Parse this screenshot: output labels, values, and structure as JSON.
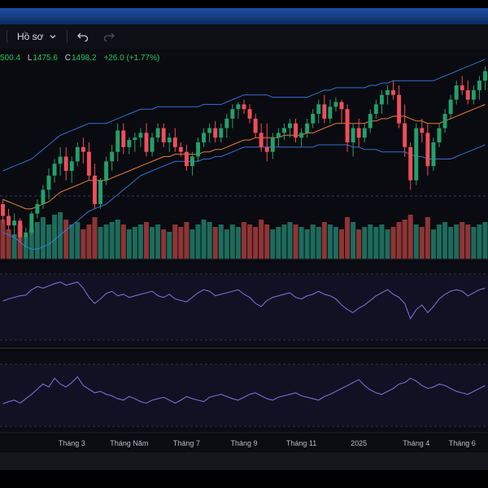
{
  "toolbar": {
    "profile_label": "Hồ sơ",
    "icons": [
      "chevron-down-icon",
      "undo-icon",
      "redo-icon"
    ]
  },
  "ohlc_legend": {
    "o_key": "",
    "o_val": "500.4",
    "l_key": "L",
    "l_val": "1475.6",
    "c_key": "C",
    "c_val": "1498.2",
    "change": "+26.0 (+1.77%)"
  },
  "colors": {
    "background": "#08090c",
    "up": "#22a06b",
    "up_volume": "#1d6b5c",
    "down": "#f04d5b",
    "down_volume": "#8e3535",
    "ma_line": "#ff8a3c",
    "band_line": "#3b82f6",
    "oscillator": "#7a6ccf",
    "oscillator_fill": "#151329",
    "accent": "#1f4fa6"
  },
  "x_axis": {
    "labels": [
      "Tháng 3",
      "Tháng Năm",
      "Tháng 7",
      "Tháng 9",
      "Tháng 11",
      "2025",
      "Tháng 4",
      "Tháng 6"
    ]
  },
  "chart_data": {
    "type": "candlestick",
    "title": "",
    "xlabel": "",
    "ylabel": "",
    "grid": true,
    "candles": [
      [
        38,
        40,
        30,
        33
      ],
      [
        33,
        36,
        27,
        29
      ],
      [
        29,
        34,
        24,
        31
      ],
      [
        31,
        32,
        22,
        24
      ],
      [
        24,
        28,
        20,
        26
      ],
      [
        26,
        35,
        25,
        34
      ],
      [
        34,
        40,
        32,
        38
      ],
      [
        38,
        46,
        36,
        44
      ],
      [
        44,
        53,
        40,
        50
      ],
      [
        50,
        57,
        47,
        55
      ],
      [
        55,
        62,
        50,
        58
      ],
      [
        58,
        62,
        48,
        52
      ],
      [
        52,
        58,
        47,
        56
      ],
      [
        56,
        64,
        54,
        62
      ],
      [
        62,
        66,
        55,
        60
      ],
      [
        60,
        64,
        48,
        50
      ],
      [
        50,
        55,
        36,
        38
      ],
      [
        38,
        49,
        36,
        48
      ],
      [
        48,
        58,
        46,
        56
      ],
      [
        56,
        63,
        52,
        60
      ],
      [
        60,
        72,
        56,
        69
      ],
      [
        69,
        72,
        59,
        62
      ],
      [
        62,
        66,
        59,
        65
      ],
      [
        65,
        68,
        60,
        66
      ],
      [
        66,
        70,
        62,
        68
      ],
      [
        68,
        72,
        58,
        60
      ],
      [
        60,
        68,
        58,
        66
      ],
      [
        66,
        72,
        64,
        70
      ],
      [
        70,
        72,
        62,
        64
      ],
      [
        64,
        68,
        60,
        66
      ],
      [
        66,
        70,
        60,
        62
      ],
      [
        62,
        64,
        58,
        60
      ],
      [
        60,
        63,
        52,
        54
      ],
      [
        54,
        60,
        50,
        58
      ],
      [
        58,
        66,
        56,
        64
      ],
      [
        64,
        70,
        62,
        68
      ],
      [
        68,
        72,
        64,
        70
      ],
      [
        70,
        73,
        64,
        66
      ],
      [
        66,
        72,
        64,
        70
      ],
      [
        70,
        76,
        66,
        74
      ],
      [
        74,
        80,
        70,
        78
      ],
      [
        78,
        81,
        74,
        80
      ],
      [
        80,
        82,
        76,
        78
      ],
      [
        78,
        80,
        72,
        74
      ],
      [
        74,
        76,
        66,
        68
      ],
      [
        68,
        72,
        60,
        62
      ],
      [
        62,
        72,
        56,
        60
      ],
      [
        60,
        68,
        57,
        66
      ],
      [
        66,
        70,
        62,
        68
      ],
      [
        68,
        72,
        65,
        70
      ],
      [
        70,
        74,
        66,
        72
      ],
      [
        72,
        74,
        64,
        66
      ],
      [
        66,
        70,
        62,
        68
      ],
      [
        68,
        74,
        66,
        72
      ],
      [
        72,
        78,
        70,
        76
      ],
      [
        76,
        82,
        72,
        80
      ],
      [
        80,
        84,
        72,
        74
      ],
      [
        74,
        82,
        72,
        79
      ],
      [
        79,
        83,
        77,
        81
      ],
      [
        81,
        82,
        72,
        78
      ],
      [
        78,
        80,
        60,
        64
      ],
      [
        64,
        72,
        58,
        70
      ],
      [
        70,
        74,
        62,
        66
      ],
      [
        66,
        72,
        64,
        70
      ],
      [
        70,
        78,
        68,
        76
      ],
      [
        76,
        82,
        74,
        80
      ],
      [
        80,
        86,
        76,
        84
      ],
      [
        84,
        88,
        80,
        86
      ],
      [
        86,
        90,
        82,
        84
      ],
      [
        84,
        88,
        70,
        72
      ],
      [
        72,
        80,
        58,
        62
      ],
      [
        62,
        64,
        44,
        48
      ],
      [
        48,
        72,
        46,
        70
      ],
      [
        70,
        74,
        64,
        68
      ],
      [
        68,
        72,
        50,
        54
      ],
      [
        54,
        66,
        52,
        64
      ],
      [
        64,
        72,
        62,
        70
      ],
      [
        70,
        78,
        68,
        76
      ],
      [
        76,
        84,
        74,
        82
      ],
      [
        82,
        90,
        80,
        88
      ],
      [
        88,
        92,
        84,
        86
      ],
      [
        86,
        90,
        80,
        82
      ],
      [
        82,
        88,
        80,
        86
      ],
      [
        86,
        92,
        82,
        90
      ],
      [
        90,
        96,
        86,
        94
      ]
    ],
    "volume": [
      80,
      60,
      50,
      70,
      45,
      60,
      75,
      85,
      70,
      90,
      95,
      80,
      70,
      75,
      60,
      70,
      85,
      65,
      70,
      75,
      80,
      70,
      60,
      65,
      70,
      75,
      65,
      70,
      60,
      55,
      70,
      65,
      75,
      60,
      70,
      80,
      75,
      65,
      70,
      60,
      70,
      65,
      75,
      70,
      65,
      80,
      70,
      60,
      65,
      70,
      75,
      70,
      65,
      60,
      70,
      65,
      75,
      70,
      65,
      60,
      85,
      75,
      60,
      65,
      70,
      65,
      70,
      60,
      65,
      75,
      80,
      90,
      70,
      65,
      85,
      60,
      70,
      75,
      65,
      70,
      75,
      70,
      65,
      70,
      75
    ],
    "ma": [
      40,
      39,
      38,
      37,
      36,
      36,
      37,
      38,
      39,
      41,
      43,
      44,
      45,
      46,
      47,
      48,
      48,
      48,
      48,
      49,
      50,
      51,
      52,
      53,
      54,
      55,
      56,
      57,
      58,
      58,
      59,
      59,
      59,
      59,
      59,
      60,
      60,
      61,
      61,
      62,
      63,
      64,
      65,
      65,
      66,
      66,
      66,
      66,
      66,
      67,
      67,
      67,
      67,
      68,
      68,
      69,
      70,
      71,
      72,
      72,
      72,
      72,
      72,
      72,
      73,
      73,
      74,
      74,
      75,
      75,
      75,
      74,
      73,
      73,
      72,
      72,
      72,
      73,
      74,
      75,
      76,
      77,
      78,
      79,
      80
    ],
    "band_upper": [
      52,
      53,
      54,
      55,
      56,
      57,
      59,
      61,
      63,
      65,
      67,
      68,
      69,
      70,
      71,
      72,
      72,
      72,
      72,
      73,
      74,
      75,
      76,
      77,
      78,
      78,
      78,
      79,
      79,
      79,
      79,
      79,
      79,
      79,
      79,
      80,
      80,
      80,
      80,
      81,
      82,
      83,
      84,
      84,
      84,
      84,
      84,
      83,
      83,
      83,
      83,
      83,
      83,
      83,
      84,
      85,
      86,
      86,
      87,
      87,
      87,
      87,
      87,
      87,
      88,
      88,
      89,
      89,
      90,
      90,
      90,
      90,
      90,
      90,
      90,
      90,
      91,
      92,
      93,
      94,
      95,
      96,
      97,
      98,
      99
    ],
    "band_lower": [
      26,
      25,
      24,
      22,
      20,
      19,
      19,
      20,
      21,
      23,
      25,
      27,
      29,
      31,
      33,
      35,
      36,
      37,
      38,
      40,
      42,
      44,
      46,
      48,
      50,
      51,
      52,
      53,
      54,
      55,
      56,
      56,
      56,
      56,
      56,
      57,
      57,
      58,
      58,
      59,
      60,
      61,
      62,
      62,
      62,
      62,
      62,
      62,
      62,
      62,
      62,
      62,
      62,
      62,
      62,
      63,
      63,
      63,
      63,
      63,
      63,
      62,
      62,
      61,
      61,
      61,
      60,
      60,
      60,
      60,
      60,
      59,
      58,
      58,
      57,
      57,
      57,
      57,
      57,
      58,
      59,
      60,
      61,
      62,
      63
    ],
    "oscillator_1": [
      55,
      58,
      60,
      62,
      63,
      70,
      74,
      72,
      75,
      78,
      80,
      76,
      78,
      80,
      72,
      60,
      52,
      58,
      65,
      68,
      62,
      64,
      60,
      62,
      64,
      66,
      68,
      62,
      60,
      64,
      58,
      56,
      54,
      60,
      66,
      70,
      68,
      62,
      64,
      66,
      68,
      70,
      64,
      60,
      52,
      48,
      56,
      60,
      62,
      64,
      66,
      60,
      58,
      62,
      64,
      68,
      64,
      62,
      58,
      50,
      44,
      40,
      46,
      50,
      56,
      62,
      66,
      70,
      64,
      60,
      52,
      32,
      44,
      50,
      40,
      48,
      58,
      64,
      68,
      70,
      68,
      62,
      66,
      70,
      72
    ],
    "oscillator_2": [
      35,
      38,
      40,
      36,
      42,
      48,
      55,
      62,
      58,
      70,
      62,
      58,
      64,
      72,
      60,
      55,
      50,
      52,
      48,
      46,
      42,
      40,
      45,
      42,
      38,
      36,
      40,
      42,
      44,
      40,
      36,
      40,
      45,
      42,
      40,
      38,
      44,
      46,
      48,
      45,
      42,
      40,
      44,
      48,
      50,
      46,
      42,
      40,
      44,
      46,
      48,
      50,
      46,
      44,
      42,
      40,
      45,
      48,
      52,
      56,
      60,
      64,
      68,
      60,
      54,
      50,
      48,
      52,
      56,
      62,
      64,
      70,
      66,
      60,
      56,
      58,
      62,
      60,
      56,
      52,
      50,
      48,
      52,
      56,
      60
    ]
  }
}
